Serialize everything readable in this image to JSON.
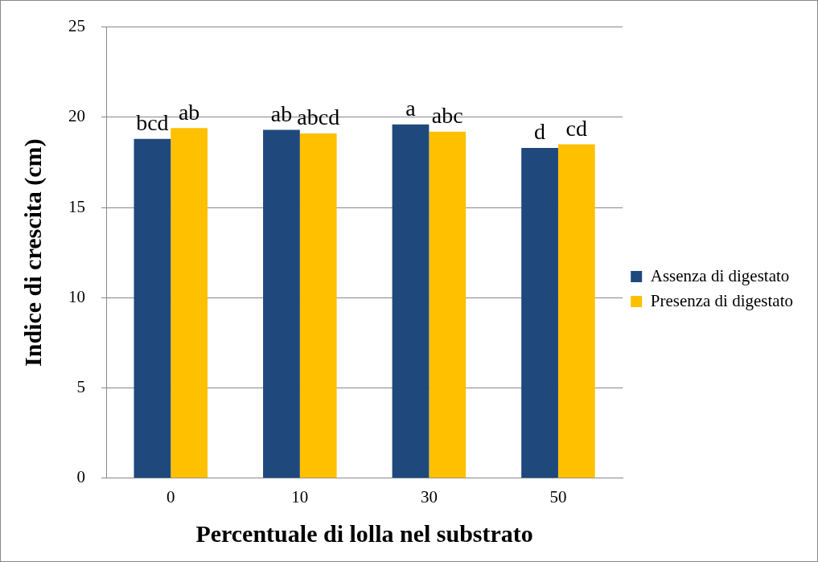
{
  "chart_data": {
    "type": "bar",
    "xlabel": "Percentuale di lolla nel substrato",
    "ylabel": "Indice di crescita (cm)",
    "categories": [
      "0",
      "10",
      "30",
      "50"
    ],
    "series": [
      {
        "name": "Assenza di digestato",
        "color": "#1f497d",
        "values": [
          18.8,
          19.3,
          19.6,
          18.3
        ],
        "value_labels": [
          "bcd",
          "ab",
          "a",
          "d"
        ]
      },
      {
        "name": "Presenza di digestato",
        "color": "#ffc000",
        "values": [
          19.4,
          19.1,
          19.2,
          18.5
        ],
        "value_labels": [
          "ab",
          "abcd",
          "abc",
          "cd"
        ]
      }
    ],
    "ylim": [
      0,
      25
    ],
    "yticks": [
      0,
      5,
      10,
      15,
      20,
      25
    ],
    "grid": "y",
    "legend": "right"
  }
}
